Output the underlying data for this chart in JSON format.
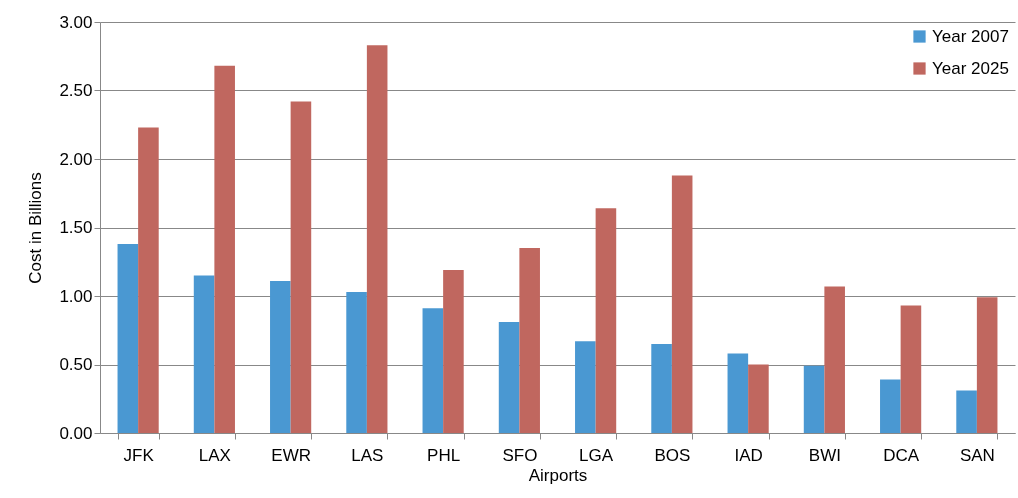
{
  "chart_data": {
    "type": "bar",
    "xlabel": "Airports",
    "ylabel": "Cost in Billions",
    "categories": [
      "JFK",
      "LAX",
      "EWR",
      "LAS",
      "PHL",
      "SFO",
      "LGA",
      "BOS",
      "IAD",
      "BWI",
      "DCA",
      "SAN"
    ],
    "series": [
      {
        "name": "Year 2007",
        "color": "#4a98d2",
        "values": [
          1.38,
          1.15,
          1.11,
          1.03,
          0.91,
          0.81,
          0.67,
          0.65,
          0.58,
          0.49,
          0.39,
          0.31
        ]
      },
      {
        "name": "Year 2025",
        "color": "#c0675f",
        "values": [
          2.23,
          2.68,
          2.42,
          2.83,
          1.19,
          1.35,
          1.64,
          1.88,
          0.5,
          1.07,
          0.93,
          0.99
        ]
      }
    ],
    "ylim": [
      0,
      3
    ],
    "yticks": [
      {
        "value": 0,
        "label": "0.00"
      },
      {
        "value": 0.5,
        "label": "0.50"
      },
      {
        "value": 1,
        "label": "1.00"
      },
      {
        "value": 1.5,
        "label": "1.50"
      },
      {
        "value": 2,
        "label": "2.00"
      },
      {
        "value": 2.5,
        "label": "2.50"
      },
      {
        "value": 3,
        "label": "3.00"
      }
    ],
    "grid": "y",
    "legend": "top right"
  }
}
